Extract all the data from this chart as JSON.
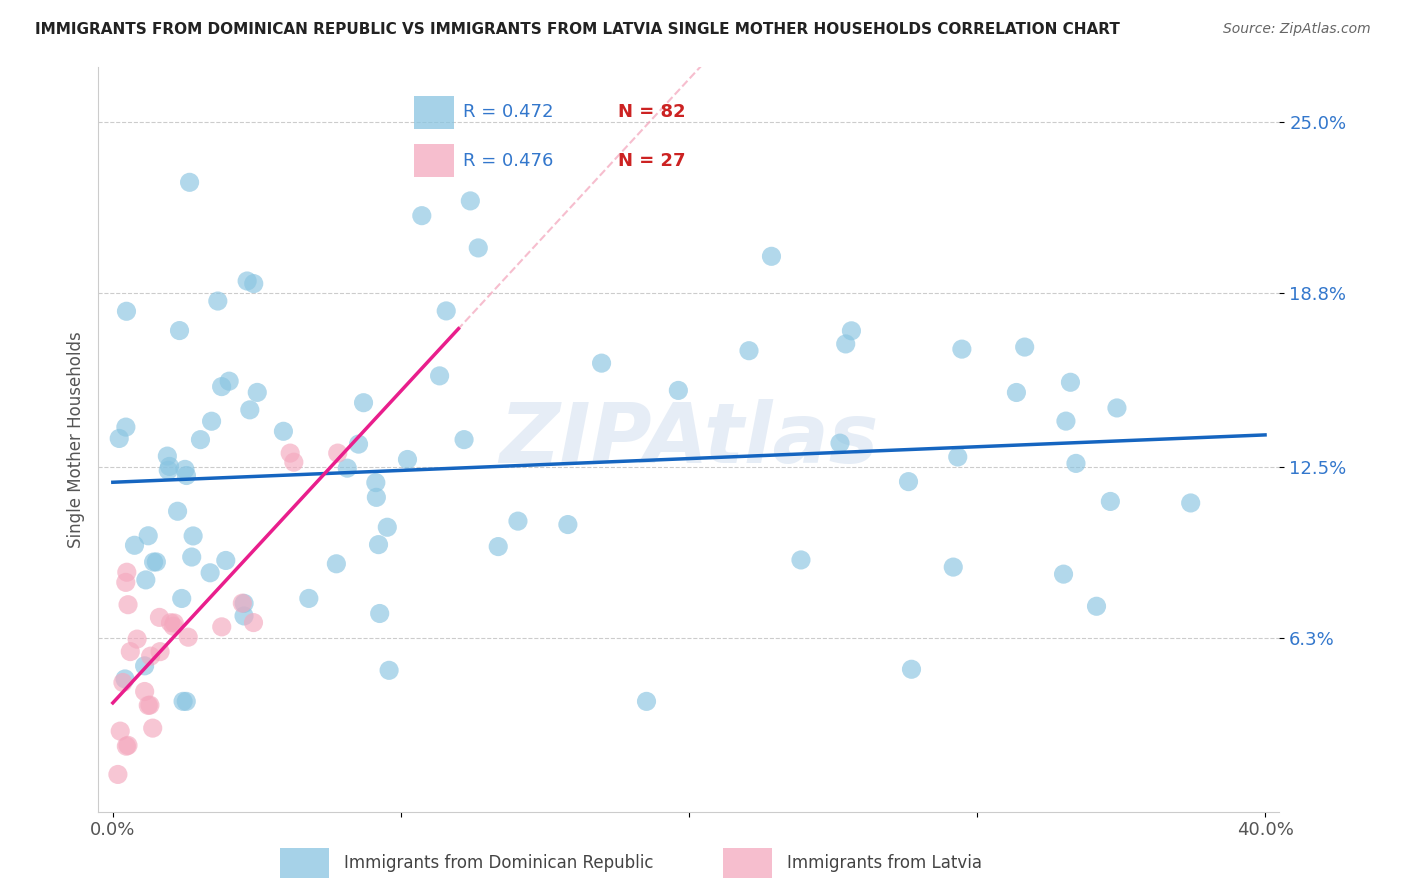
{
  "title": "IMMIGRANTS FROM DOMINICAN REPUBLIC VS IMMIGRANTS FROM LATVIA SINGLE MOTHER HOUSEHOLDS CORRELATION CHART",
  "source": "Source: ZipAtlas.com",
  "ylabel": "Single Mother Households",
  "ytick_labels": [
    "6.3%",
    "12.5%",
    "18.8%",
    "25.0%"
  ],
  "ytick_values": [
    0.063,
    0.125,
    0.188,
    0.25
  ],
  "xtick_labels": [
    "0.0%",
    "",
    "",
    "",
    "40.0%"
  ],
  "xtick_values": [
    0.0,
    0.1,
    0.2,
    0.3,
    0.4
  ],
  "xlim": [
    -0.005,
    0.405
  ],
  "ylim": [
    0.0,
    0.27
  ],
  "legend_blue_r": "R = 0.472",
  "legend_blue_n": "N = 82",
  "legend_pink_r": "R = 0.476",
  "legend_pink_n": "N = 27",
  "label_blue": "Immigrants from Dominican Republic",
  "label_pink": "Immigrants from Latvia",
  "color_blue": "#89c4e1",
  "color_pink": "#f4a8be",
  "line_blue": "#1565c0",
  "line_pink": "#e91e8c",
  "line_dashed_color": "#f4a8be",
  "watermark": "ZIPAtlas",
  "blue_intercept": 0.098,
  "blue_slope": 0.22,
  "pink_intercept": 0.045,
  "pink_slope": 1.1,
  "pink_line_xmax": 0.12,
  "dashed_line_intercept": 0.025,
  "dashed_line_slope": 0.52
}
